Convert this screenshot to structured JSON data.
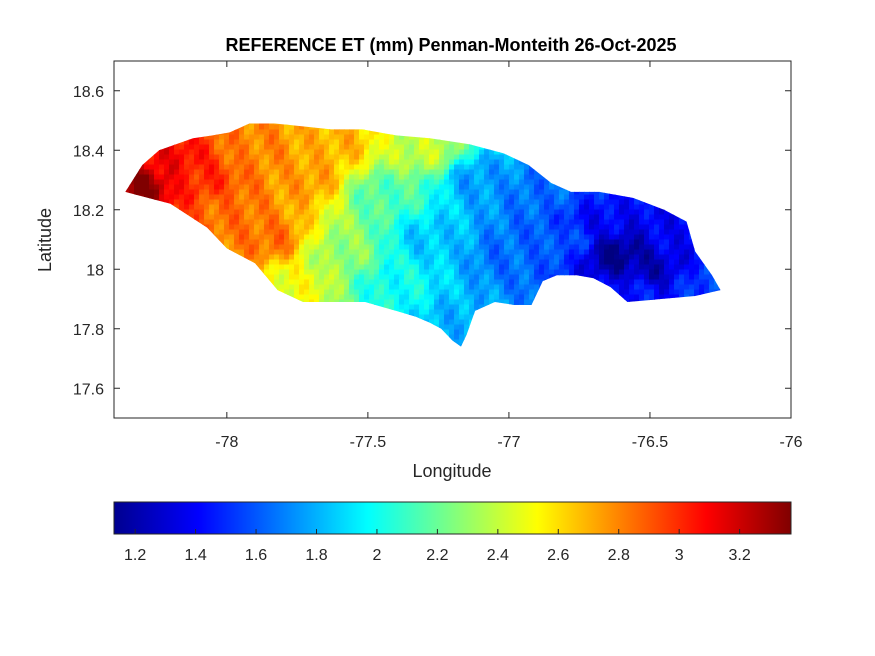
{
  "chart_data": {
    "type": "heatmap",
    "title": "REFERENCE ET (mm) Penman-Monteith 26-Oct-2025",
    "xlabel": "Longitude",
    "ylabel": "Latitude",
    "xlim": [
      -78.4,
      -76
    ],
    "ylim": [
      17.5,
      18.7
    ],
    "xticks": [
      -78,
      -77.5,
      -77,
      -76.5,
      -76
    ],
    "xtick_labels": [
      "-78",
      "-77.5",
      "-77",
      "-76.5",
      "-76"
    ],
    "yticks": [
      17.6,
      17.8,
      18,
      18.2,
      18.4,
      18.6
    ],
    "ytick_labels": [
      "17.6",
      "17.8",
      "18",
      "18.2",
      "18.4",
      "18.6"
    ],
    "grid": false,
    "colormap": "jet",
    "colorbar": {
      "orientation": "horizontal",
      "location": "bottom",
      "clim": [
        1.13,
        3.37
      ],
      "ticks": [
        1.2,
        1.4,
        1.6,
        1.8,
        2.0,
        2.2,
        2.4,
        2.6,
        2.8,
        3.0,
        3.2
      ],
      "tick_labels": [
        "1.2",
        "1.4",
        "1.6",
        "1.8",
        "2",
        "2.2",
        "2.4",
        "2.6",
        "2.8",
        "3",
        "3.2"
      ]
    },
    "outline": [
      [
        -78.36,
        18.26
      ],
      [
        -78.3,
        18.35
      ],
      [
        -78.24,
        18.4
      ],
      [
        -78.12,
        18.44
      ],
      [
        -78.05,
        18.45
      ],
      [
        -77.99,
        18.46
      ],
      [
        -77.92,
        18.49
      ],
      [
        -77.83,
        18.49
      ],
      [
        -77.73,
        18.48
      ],
      [
        -77.63,
        18.47
      ],
      [
        -77.52,
        18.47
      ],
      [
        -77.4,
        18.45
      ],
      [
        -77.28,
        18.44
      ],
      [
        -77.14,
        18.42
      ],
      [
        -77.02,
        18.39
      ],
      [
        -76.93,
        18.35
      ],
      [
        -76.85,
        18.29
      ],
      [
        -76.78,
        18.26
      ],
      [
        -76.68,
        18.26
      ],
      [
        -76.56,
        18.24
      ],
      [
        -76.45,
        18.2
      ],
      [
        -76.37,
        18.16
      ],
      [
        -76.34,
        18.06
      ],
      [
        -76.28,
        17.98
      ],
      [
        -76.25,
        17.93
      ],
      [
        -76.34,
        17.91
      ],
      [
        -76.46,
        17.9
      ],
      [
        -76.58,
        17.89
      ],
      [
        -76.64,
        17.94
      ],
      [
        -76.7,
        17.97
      ],
      [
        -76.76,
        17.98
      ],
      [
        -76.83,
        17.98
      ],
      [
        -76.88,
        17.96
      ],
      [
        -76.92,
        17.88
      ],
      [
        -76.98,
        17.88
      ],
      [
        -77.05,
        17.89
      ],
      [
        -77.12,
        17.86
      ],
      [
        -77.15,
        17.78
      ],
      [
        -77.17,
        17.74
      ],
      [
        -77.2,
        17.76
      ],
      [
        -77.24,
        17.8
      ],
      [
        -77.28,
        17.82
      ],
      [
        -77.33,
        17.84
      ],
      [
        -77.4,
        17.86
      ],
      [
        -77.51,
        17.89
      ],
      [
        -77.62,
        17.89
      ],
      [
        -77.73,
        17.89
      ],
      [
        -77.82,
        17.93
      ],
      [
        -77.9,
        18.02
      ],
      [
        -78.0,
        18.07
      ],
      [
        -78.07,
        18.14
      ],
      [
        -78.2,
        18.22
      ],
      [
        -78.28,
        18.24
      ]
    ],
    "value_field": [
      {
        "lon": -78.32,
        "lat": 18.28,
        "value": 3.37
      },
      {
        "lon": -78.2,
        "lat": 18.36,
        "value": 3.1
      },
      {
        "lon": -78.1,
        "lat": 18.3,
        "value": 3.0
      },
      {
        "lon": -78.0,
        "lat": 18.2,
        "value": 2.85
      },
      {
        "lon": -77.9,
        "lat": 18.4,
        "value": 2.8
      },
      {
        "lon": -77.85,
        "lat": 18.1,
        "value": 2.85
      },
      {
        "lon": -77.75,
        "lat": 17.95,
        "value": 2.5
      },
      {
        "lon": -77.72,
        "lat": 18.3,
        "value": 2.75
      },
      {
        "lon": -77.62,
        "lat": 18.42,
        "value": 2.7
      },
      {
        "lon": -77.6,
        "lat": 18.05,
        "value": 2.3
      },
      {
        "lon": -77.45,
        "lat": 18.25,
        "value": 2.15
      },
      {
        "lon": -77.42,
        "lat": 17.95,
        "value": 2.0
      },
      {
        "lon": -77.3,
        "lat": 18.4,
        "value": 2.4
      },
      {
        "lon": -77.28,
        "lat": 18.1,
        "value": 1.85
      },
      {
        "lon": -77.18,
        "lat": 17.82,
        "value": 1.8
      },
      {
        "lon": -77.1,
        "lat": 18.3,
        "value": 1.75
      },
      {
        "lon": -77.0,
        "lat": 18.05,
        "value": 1.65
      },
      {
        "lon": -76.9,
        "lat": 18.25,
        "value": 1.65
      },
      {
        "lon": -76.8,
        "lat": 18.1,
        "value": 1.6
      },
      {
        "lon": -76.7,
        "lat": 18.15,
        "value": 1.4
      },
      {
        "lon": -76.62,
        "lat": 18.05,
        "value": 1.15
      },
      {
        "lon": -76.5,
        "lat": 18.0,
        "value": 1.25
      },
      {
        "lon": -76.4,
        "lat": 18.1,
        "value": 1.4
      },
      {
        "lon": -76.3,
        "lat": 17.95,
        "value": 1.55
      },
      {
        "lon": -76.55,
        "lat": 17.92,
        "value": 1.45
      }
    ]
  }
}
